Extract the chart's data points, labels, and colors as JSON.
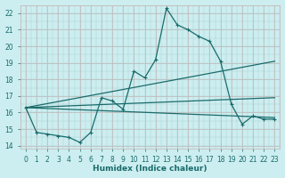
{
  "xlabel": "Humidex (Indice chaleur)",
  "bg_color": "#cceef0",
  "grid_color_pink": "#c8b0b0",
  "grid_color_teal": "#a8d0d0",
  "line_color": "#1a6b6b",
  "xlim": [
    -0.5,
    23.5
  ],
  "ylim": [
    13.8,
    22.5
  ],
  "yticks": [
    14,
    15,
    16,
    17,
    18,
    19,
    20,
    21,
    22
  ],
  "xticks": [
    0,
    1,
    2,
    3,
    4,
    5,
    6,
    7,
    8,
    9,
    10,
    11,
    12,
    13,
    14,
    15,
    16,
    17,
    18,
    19,
    20,
    21,
    22,
    23
  ],
  "line1_x": [
    0,
    1,
    2,
    3,
    4,
    5,
    6,
    7,
    8,
    9,
    10,
    11,
    12,
    13,
    14,
    15,
    16,
    17,
    18,
    19,
    20,
    21,
    22,
    23
  ],
  "line1_y": [
    16.3,
    14.8,
    14.7,
    14.6,
    14.5,
    14.2,
    14.8,
    16.9,
    16.7,
    16.2,
    18.5,
    18.1,
    19.2,
    22.3,
    21.3,
    21.0,
    20.6,
    20.3,
    19.1,
    16.5,
    15.3,
    15.8,
    15.6,
    15.6
  ],
  "line2_x": [
    0,
    23
  ],
  "line2_y": [
    16.3,
    19.1
  ],
  "line3_x": [
    0,
    23
  ],
  "line3_y": [
    16.3,
    16.9
  ],
  "line4_x": [
    0,
    23
  ],
  "line4_y": [
    16.3,
    15.7
  ]
}
